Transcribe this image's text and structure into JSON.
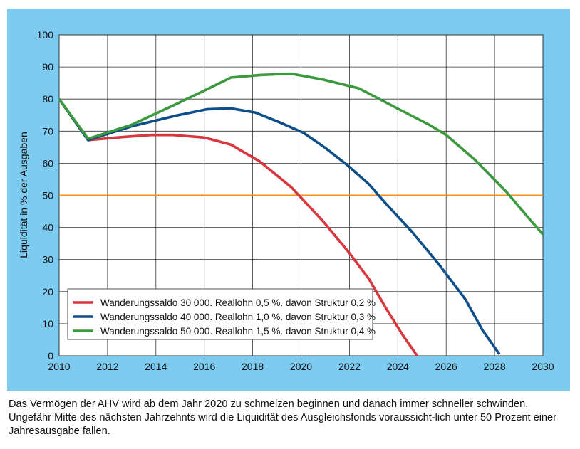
{
  "chart_data": {
    "type": "line",
    "title": "",
    "xlabel": "",
    "ylabel": "Liquidität in % der Ausgaben",
    "xlim": [
      2010,
      2030
    ],
    "ylim": [
      0,
      100
    ],
    "xticks": [
      2010,
      2012,
      2014,
      2016,
      2018,
      2020,
      2022,
      2024,
      2026,
      2028,
      2030
    ],
    "yticks": [
      0,
      10,
      20,
      30,
      40,
      50,
      60,
      70,
      80,
      90,
      100
    ],
    "grid": true,
    "legend_position": "bottom-left",
    "reference_line": {
      "y": 50,
      "color": "#f0901a"
    },
    "series": [
      {
        "name": "Wanderungssaldo 30 000. Reallohn 0,5 %. davon Struktur 0,2 %",
        "color": "#d9363e",
        "x": [
          2010,
          2011.2,
          2012.5,
          2013.8,
          2014.7,
          2016,
          2017.1,
          2018.3,
          2019.6,
          2020.9,
          2022,
          2022.8,
          2023.5,
          2024.2,
          2024.8
        ],
        "y": [
          80,
          67.2,
          68.1,
          68.8,
          68.8,
          68,
          65.8,
          60.5,
          52.5,
          42,
          32,
          24,
          15,
          6.5,
          0
        ]
      },
      {
        "name": "Wanderungssaldo 40 000. Reallohn 1,0 %. davon Struktur 0,3 %",
        "color": "#0d4f8b",
        "x": [
          2010,
          2011.2,
          2013,
          2014.8,
          2016.1,
          2017.1,
          2018.1,
          2019.1,
          2020.1,
          2021,
          2021.9,
          2022.8,
          2023.5,
          2024.6,
          2025.7,
          2026.8,
          2027.5,
          2028.2
        ],
        "y": [
          80,
          67.2,
          71.5,
          74.8,
          76.8,
          77.1,
          75.8,
          72.8,
          69.5,
          64.8,
          59.5,
          53.5,
          47.5,
          38.5,
          28.5,
          17.5,
          8,
          0.5
        ]
      },
      {
        "name": "Wanderungssaldo 50 000. Reallohn 1,5 %. davon Struktur 0,4 %",
        "color": "#3a9a3d",
        "x": [
          2010,
          2011.2,
          2013,
          2014.8,
          2016.1,
          2017.1,
          2018.3,
          2019.6,
          2020.9,
          2022.4,
          2024,
          2025.3,
          2026,
          2027.2,
          2028.5,
          2029.4,
          2030
        ],
        "y": [
          80,
          67.6,
          72,
          78.3,
          83,
          86.7,
          87.5,
          87.9,
          86.1,
          83.3,
          77,
          72,
          68.8,
          61,
          51,
          43,
          37.8
        ]
      }
    ]
  },
  "caption": "Das Vermögen der AHV wird ab dem Jahr 2020 zu schmelzen beginnen und danach immer schneller schwinden. Ungefähr Mitte des nächsten Jahrzehnts wird die Liquidität des Ausgleichsfonds voraussicht-lich unter 50 Prozent einer Jahresausgabe fallen."
}
